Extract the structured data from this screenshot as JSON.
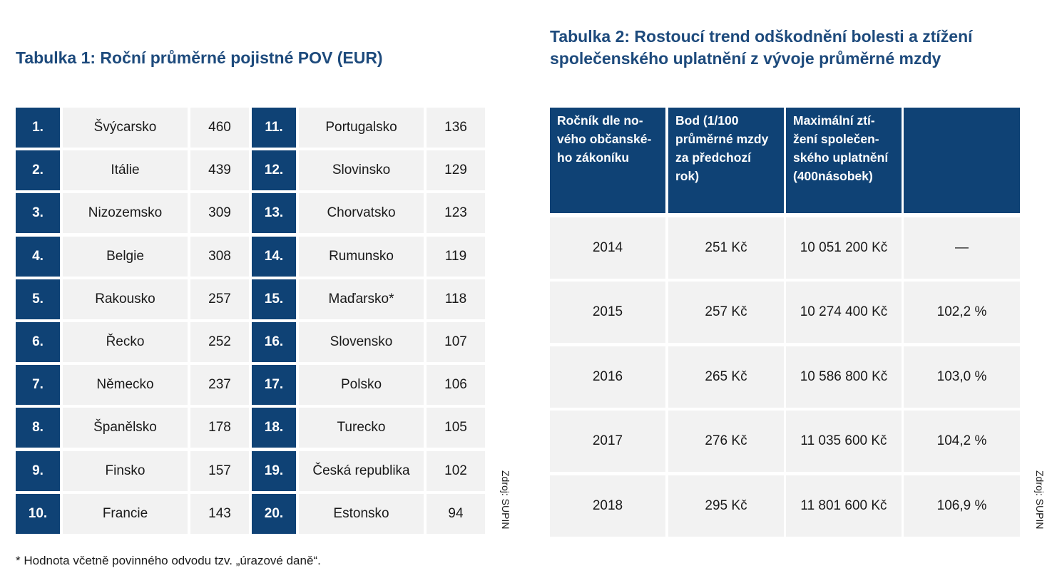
{
  "table1": {
    "title": "Tabulka 1: Roční průměrné pojistné POV (EUR)",
    "left": [
      {
        "rank": "1.",
        "country": "Švýcarsko",
        "value": "460"
      },
      {
        "rank": "2.",
        "country": "Itálie",
        "value": "439"
      },
      {
        "rank": "3.",
        "country": "Nizozemsko",
        "value": "309"
      },
      {
        "rank": "4.",
        "country": "Belgie",
        "value": "308"
      },
      {
        "rank": "5.",
        "country": "Rakousko",
        "value": "257"
      },
      {
        "rank": "6.",
        "country": "Řecko",
        "value": "252"
      },
      {
        "rank": "7.",
        "country": "Německo",
        "value": "237"
      },
      {
        "rank": "8.",
        "country": "Španělsko",
        "value": "178"
      },
      {
        "rank": "9.",
        "country": "Finsko",
        "value": "157"
      },
      {
        "rank": "10.",
        "country": "Francie",
        "value": "143"
      }
    ],
    "right": [
      {
        "rank": "11.",
        "country": "Portugalsko",
        "value": "136"
      },
      {
        "rank": "12.",
        "country": "Slovinsko",
        "value": "129"
      },
      {
        "rank": "13.",
        "country": "Chorvatsko",
        "value": "123"
      },
      {
        "rank": "14.",
        "country": "Rumunsko",
        "value": "119"
      },
      {
        "rank": "15.",
        "country": "Maďarsko*",
        "value": "118"
      },
      {
        "rank": "16.",
        "country": "Slovensko",
        "value": "107"
      },
      {
        "rank": "17.",
        "country": "Polsko",
        "value": "106"
      },
      {
        "rank": "18.",
        "country": "Turecko",
        "value": "105"
      },
      {
        "rank": "19.",
        "country": "Česká republika",
        "value": "102"
      },
      {
        "rank": "20.",
        "country": "Estonsko",
        "value": "94"
      }
    ],
    "source": "Zdroj: SUPIN",
    "footnote": "* Hodnota včetně povinného odvodu tzv. „úrazové daně“."
  },
  "table2": {
    "title_lines": [
      "Tabulka 2: Rostoucí trend odškodnění bolesti a ztížení",
      "společenského uplatnění z vývoje průměrné mzdy"
    ],
    "headers": [
      [
        "Ročník dle no-",
        "vého občanské-",
        "ho zákoníku"
      ],
      [
        "Bod (1/100",
        "průměrné mzdy",
        "za předchozí",
        "rok)"
      ],
      [
        "Maximální ztí-",
        "žení společen-",
        "ského uplatnění",
        "(400násobek)"
      ],
      []
    ],
    "rows": [
      [
        "2014",
        "251 Kč",
        "10 051 200 Kč",
        "—"
      ],
      [
        "2015",
        "257 Kč",
        "10 274 400 Kč",
        "102,2 %"
      ],
      [
        "2016",
        "265 Kč",
        "10 586 800 Kč",
        "103,0 %"
      ],
      [
        "2017",
        "276 Kč",
        "11 035 600 Kč",
        "104,2 %"
      ],
      [
        "2018",
        "295 Kč",
        "11 801 600 Kč",
        "106,9 %"
      ]
    ],
    "source": "Zdroj: SUPIN"
  },
  "colors": {
    "navy": "#0f4275",
    "title": "#1d4a7c",
    "cell_bg": "#f2f2f2"
  }
}
